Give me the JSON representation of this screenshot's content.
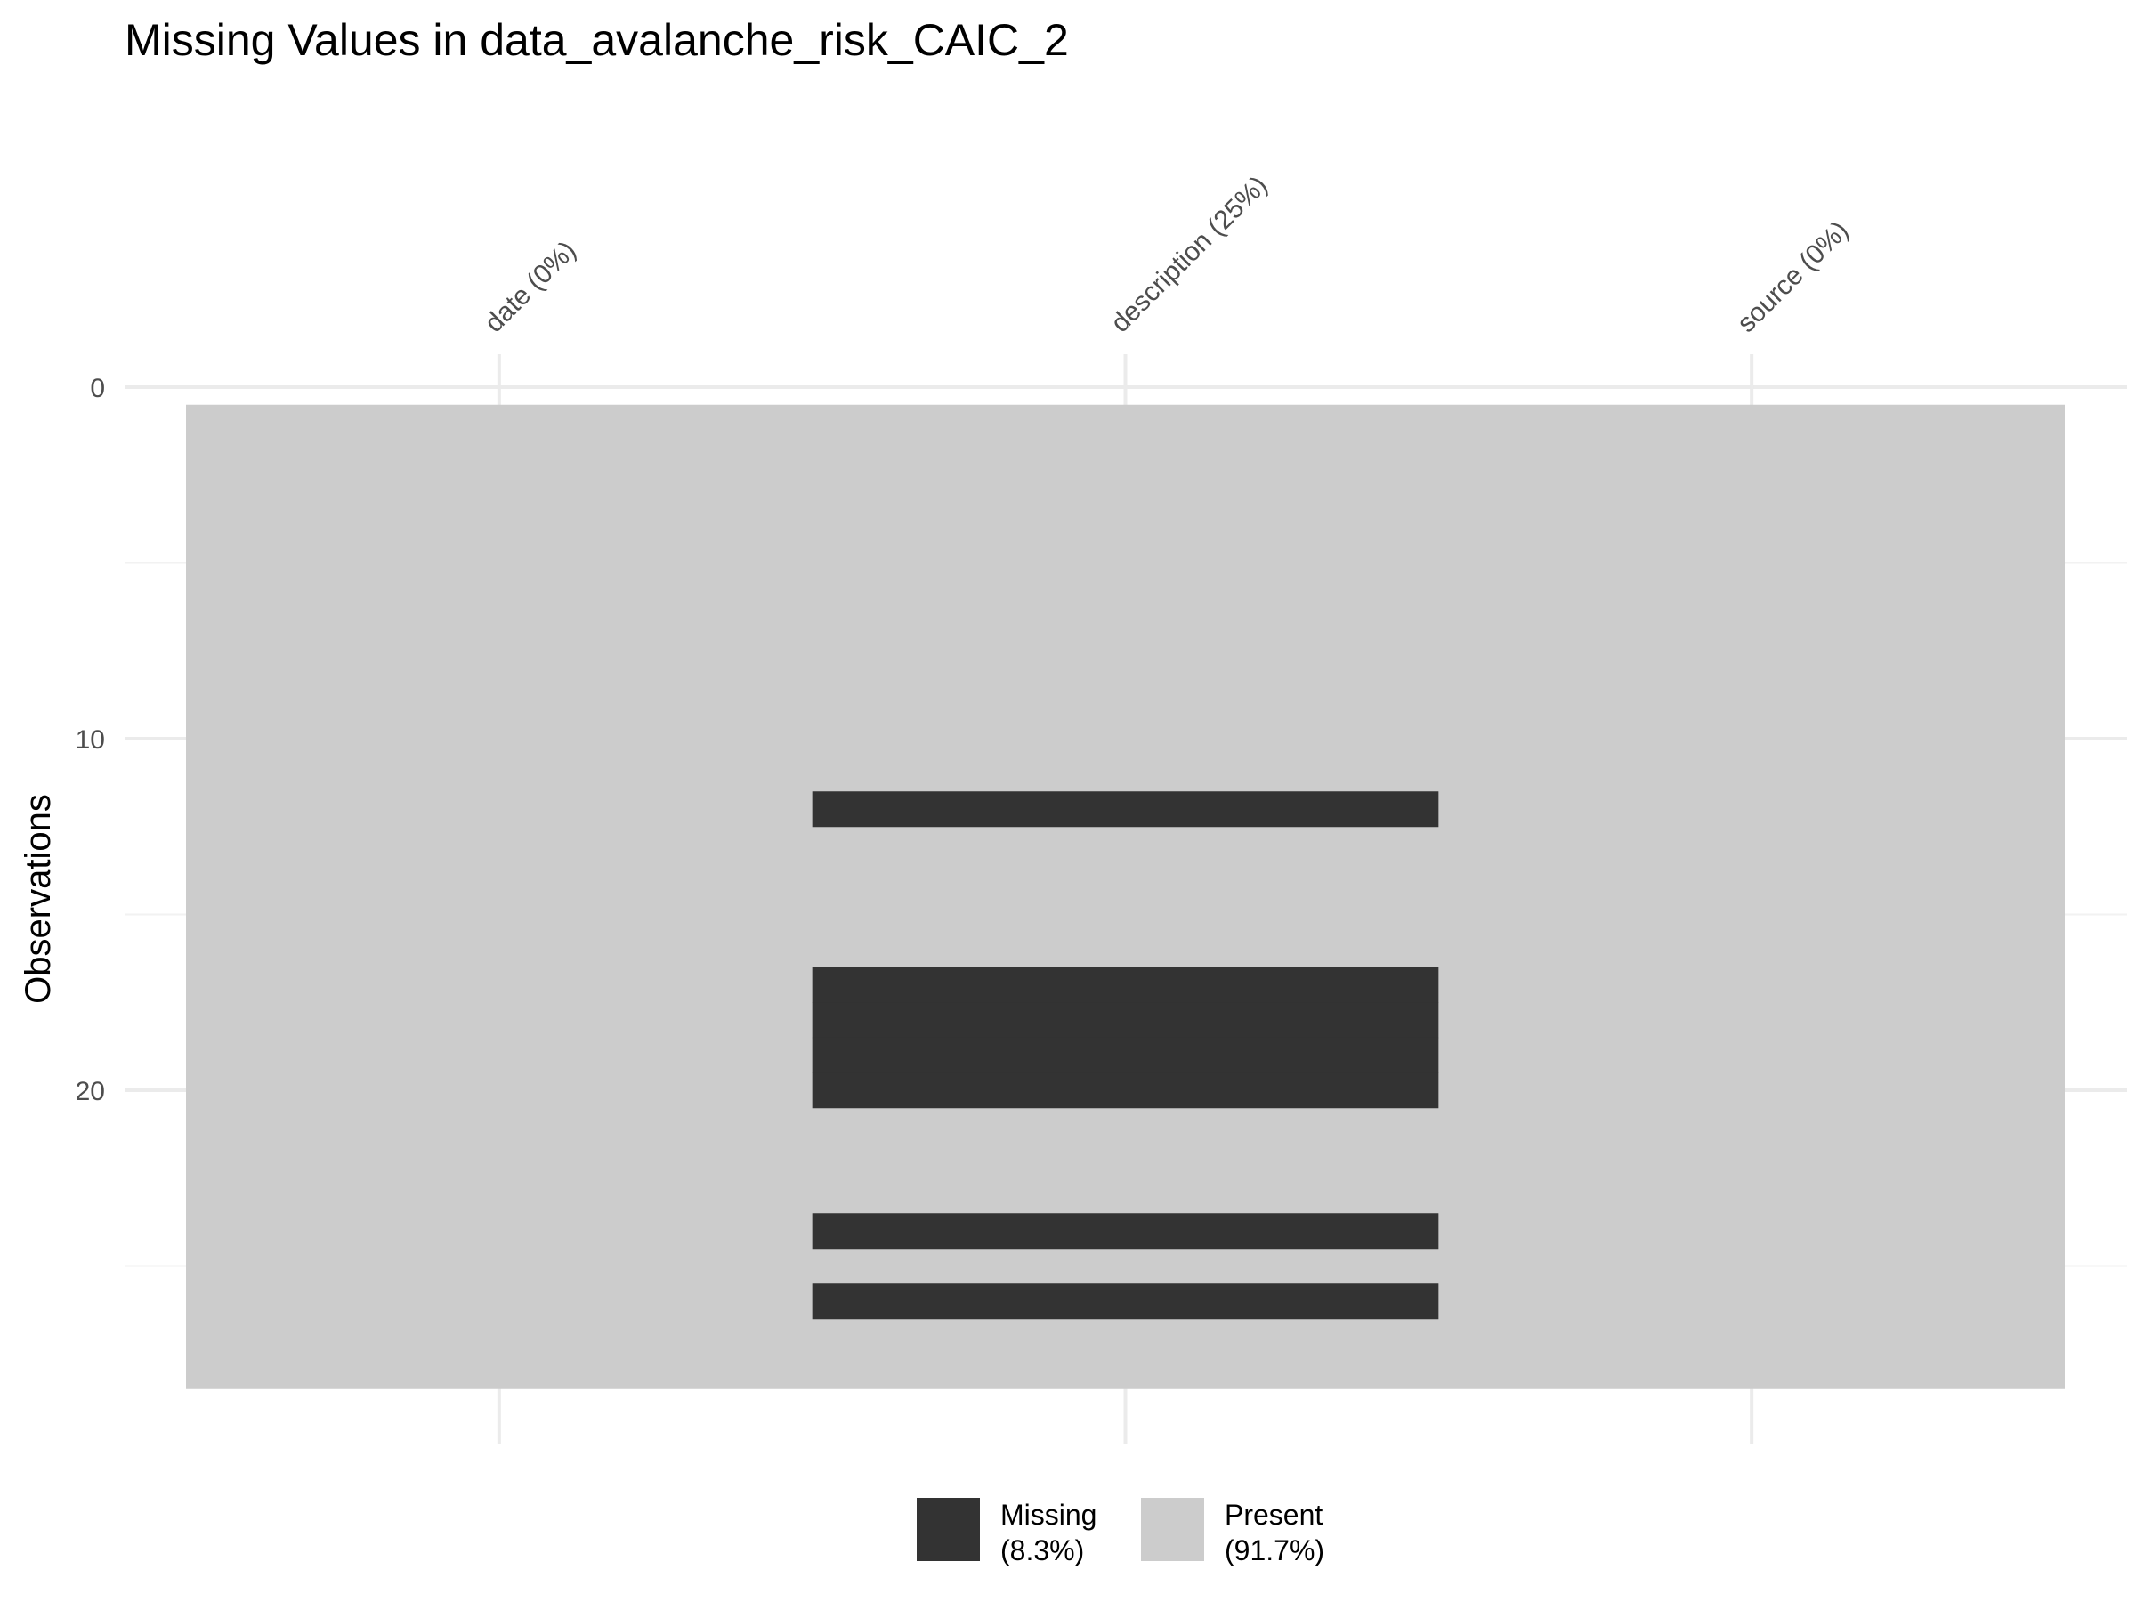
{
  "chart_data": {
    "type": "heatmap",
    "title": "Missing Values in data_avalanche_risk_CAIC_2",
    "xlabel": "",
    "ylabel": "Observations",
    "n_observations": 28,
    "columns": [
      {
        "name": "date",
        "label": "date (0%)",
        "missing_pct": 0,
        "missing_rows": []
      },
      {
        "name": "description",
        "label": "description (25%)",
        "missing_pct": 25,
        "missing_rows": [
          12,
          17,
          18,
          19,
          20,
          24,
          26
        ]
      },
      {
        "name": "source",
        "label": "source (0%)",
        "missing_pct": 0,
        "missing_rows": []
      }
    ],
    "y_ticks": [
      0,
      10,
      20
    ],
    "y_minor_ticks": [
      5,
      15,
      25
    ],
    "ylim": [
      0,
      28
    ],
    "y_reversed": true,
    "x_axis_position": "top",
    "grid": true,
    "legend": {
      "placement": "bottom",
      "items": [
        {
          "key": "missing",
          "label": "Missing",
          "pct_label": "(8.3%)",
          "color": "#333333"
        },
        {
          "key": "present",
          "label": "Present",
          "pct_label": "(91.7%)",
          "color": "#cccccc"
        }
      ]
    }
  }
}
